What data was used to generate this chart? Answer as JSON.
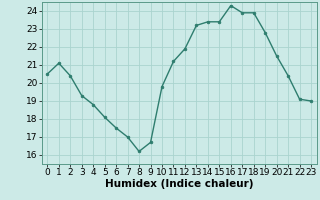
{
  "x": [
    0,
    1,
    2,
    3,
    4,
    5,
    6,
    7,
    8,
    9,
    10,
    11,
    12,
    13,
    14,
    15,
    16,
    17,
    18,
    19,
    20,
    21,
    22,
    23
  ],
  "y": [
    20.5,
    21.1,
    20.4,
    19.3,
    18.8,
    18.1,
    17.5,
    17.0,
    16.2,
    16.7,
    19.8,
    21.2,
    21.9,
    23.2,
    23.4,
    23.4,
    24.3,
    23.9,
    23.9,
    22.8,
    21.5,
    20.4,
    19.1,
    19.0
  ],
  "line_color": "#2e7d6e",
  "marker": "o",
  "marker_size": 2,
  "bg_color": "#cceae7",
  "grid_color": "#aad4cf",
  "xlabel": "Humidex (Indice chaleur)",
  "ylim": [
    15.5,
    24.5
  ],
  "yticks": [
    16,
    17,
    18,
    19,
    20,
    21,
    22,
    23,
    24
  ],
  "xlim": [
    -0.5,
    23.5
  ],
  "xticks": [
    0,
    1,
    2,
    3,
    4,
    5,
    6,
    7,
    8,
    9,
    10,
    11,
    12,
    13,
    14,
    15,
    16,
    17,
    18,
    19,
    20,
    21,
    22,
    23
  ],
  "xlabel_fontsize": 7.5,
  "tick_fontsize": 6.5
}
